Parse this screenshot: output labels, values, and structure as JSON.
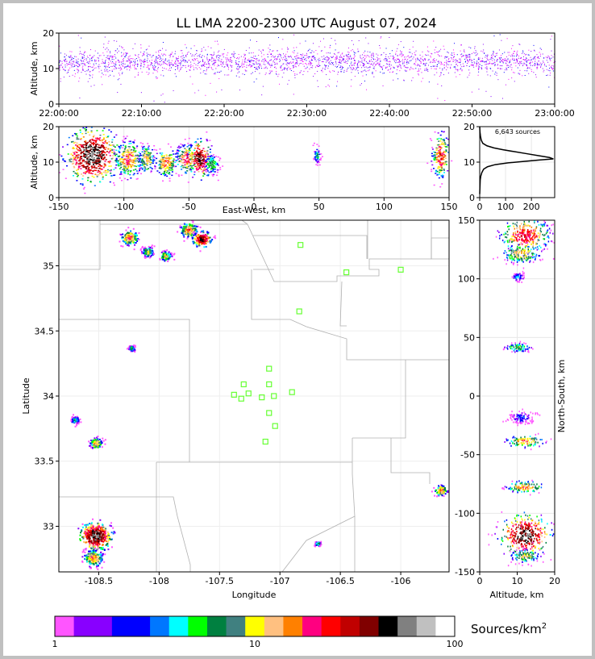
{
  "title": "LL LMA 2200-2300 UTC August 07, 2024",
  "colors": {
    "background": "#ffffff",
    "border": "#c0c0c0",
    "county_lines": "#b0b0b0",
    "stations": "#66ff33",
    "grid": "#e8e8e8",
    "histogram": "#000000"
  },
  "chart_data": [
    {
      "id": "time-height",
      "type": "scatter",
      "title": "",
      "xlabel": "",
      "ylabel": "Altitude, km",
      "xticks": [
        "22:00:00",
        "22:10:00",
        "22:20:00",
        "22:30:00",
        "22:40:00",
        "22:50:00",
        "23:00:00"
      ],
      "xlim_minutes": [
        0,
        60
      ],
      "yticks": [
        0,
        10,
        20
      ],
      "ylim": [
        0,
        20
      ],
      "band_center_km": 12,
      "band_spread_km": 2.5,
      "color_by": "time"
    },
    {
      "id": "east-west-height",
      "type": "heatmap",
      "xlabel": "East-West, km",
      "ylabel": "Altitude, km",
      "xticks": [
        -150,
        -100,
        -50,
        0,
        50,
        100,
        150
      ],
      "xlim": [
        -150,
        150
      ],
      "yticks": [
        0,
        10,
        20
      ],
      "ylim": [
        0,
        20
      ],
      "cells": [
        {
          "x": -125,
          "z": 12,
          "sx": 9,
          "sz": 3.5,
          "peak": 60
        },
        {
          "x": -97,
          "z": 11,
          "sx": 5,
          "sz": 2.5,
          "peak": 20
        },
        {
          "x": -83,
          "z": 11,
          "sx": 3,
          "sz": 2,
          "peak": 15
        },
        {
          "x": -68,
          "z": 10,
          "sx": 4,
          "sz": 2,
          "peak": 18
        },
        {
          "x": -52,
          "z": 11,
          "sx": 4,
          "sz": 2,
          "peak": 22
        },
        {
          "x": -42,
          "z": 11,
          "sx": 4,
          "sz": 2.5,
          "peak": 45
        },
        {
          "x": -33,
          "z": 9.5,
          "sx": 3,
          "sz": 1.5,
          "peak": 8
        },
        {
          "x": 48,
          "z": 12,
          "sx": 1.5,
          "sz": 1.2,
          "peak": 6
        },
        {
          "x": 143,
          "z": 12,
          "sx": 3,
          "sz": 3,
          "peak": 25
        }
      ]
    },
    {
      "id": "altitude-histogram",
      "type": "line",
      "annotation": "6,643 sources",
      "xticks": [
        0,
        100,
        200
      ],
      "xlim": [
        0,
        290
      ],
      "yticks": [
        0,
        10,
        20
      ],
      "ylim": [
        0,
        20
      ],
      "x": [
        0,
        1,
        2,
        4,
        8,
        15,
        30,
        60,
        110,
        170,
        230,
        285,
        270,
        230,
        180,
        130,
        90,
        55,
        28,
        12,
        6,
        3,
        1,
        0
      ],
      "y": [
        1,
        3,
        5,
        6,
        7,
        8,
        8.7,
        9.3,
        9.8,
        10.2,
        10.6,
        10.9,
        11.3,
        11.8,
        12.4,
        13.0,
        13.5,
        14.0,
        14.6,
        15.3,
        16.2,
        17.3,
        18.5,
        20
      ]
    },
    {
      "id": "plan-view",
      "type": "heatmap",
      "xlabel": "Longitude",
      "ylabel": "Latitude",
      "xticks": [
        -108.5,
        -108.0,
        -107.5,
        -107.0,
        -106.5,
        -106.0
      ],
      "xlim": [
        -108.83,
        -105.6
      ],
      "yticks": [
        33.0,
        33.5,
        34.0,
        34.5,
        35.0
      ],
      "ylim": [
        32.65,
        35.35
      ],
      "cells": [
        {
          "lon": -108.53,
          "lat": 32.93,
          "s": 0.06,
          "peak": 60
        },
        {
          "lon": -108.55,
          "lat": 32.76,
          "s": 0.04,
          "peak": 18
        },
        {
          "lon": -108.53,
          "lat": 33.64,
          "s": 0.025,
          "peak": 18
        },
        {
          "lon": -108.25,
          "lat": 35.22,
          "s": 0.035,
          "peak": 20
        },
        {
          "lon": -108.1,
          "lat": 35.11,
          "s": 0.025,
          "peak": 12
        },
        {
          "lon": -107.95,
          "lat": 35.08,
          "s": 0.025,
          "peak": 12
        },
        {
          "lon": -107.76,
          "lat": 35.28,
          "s": 0.035,
          "peak": 20
        },
        {
          "lon": -107.65,
          "lat": 35.21,
          "s": 0.035,
          "peak": 45
        },
        {
          "lon": -108.23,
          "lat": 34.37,
          "s": 0.015,
          "peak": 8
        },
        {
          "lon": -108.7,
          "lat": 33.82,
          "s": 0.02,
          "peak": 6
        },
        {
          "lon": -105.67,
          "lat": 33.28,
          "s": 0.025,
          "peak": 20
        },
        {
          "lon": -106.69,
          "lat": 32.87,
          "s": 0.012,
          "peak": 8
        }
      ],
      "stations": [
        {
          "lon": -106.83,
          "lat": 35.16
        },
        {
          "lon": -106.45,
          "lat": 34.95
        },
        {
          "lon": -106.0,
          "lat": 34.97
        },
        {
          "lon": -106.84,
          "lat": 34.65
        },
        {
          "lon": -107.09,
          "lat": 34.21
        },
        {
          "lon": -107.09,
          "lat": 34.09
        },
        {
          "lon": -107.3,
          "lat": 34.09
        },
        {
          "lon": -107.38,
          "lat": 34.01
        },
        {
          "lon": -107.32,
          "lat": 33.98
        },
        {
          "lon": -107.26,
          "lat": 34.02
        },
        {
          "lon": -107.15,
          "lat": 33.99
        },
        {
          "lon": -107.05,
          "lat": 34.0
        },
        {
          "lon": -106.9,
          "lat": 34.03
        },
        {
          "lon": -107.09,
          "lat": 33.87
        },
        {
          "lon": -107.04,
          "lat": 33.77
        },
        {
          "lon": -107.12,
          "lat": 33.65
        }
      ]
    },
    {
      "id": "north-south-height",
      "type": "heatmap",
      "xlabel": "Altitude, km",
      "ylabel": "North-South, km",
      "xticks": [
        0,
        10,
        20
      ],
      "xlim": [
        0,
        20
      ],
      "yticks": [
        150,
        100,
        50,
        0,
        -50,
        -100,
        -150
      ],
      "ylim": [
        -150,
        150
      ],
      "cells": [
        {
          "y": 138,
          "z": 12,
          "sy": 7,
          "sz": 3,
          "peak": 30
        },
        {
          "y": 122,
          "z": 11,
          "sy": 4,
          "sz": 2.5,
          "peak": 15
        },
        {
          "y": 102,
          "z": 10,
          "sy": 2,
          "sz": 1,
          "peak": 4
        },
        {
          "y": 42,
          "z": 10,
          "sy": 2,
          "sz": 2,
          "peak": 8
        },
        {
          "y": -18,
          "z": 11,
          "sy": 3,
          "sz": 2,
          "peak": 3
        },
        {
          "y": -38,
          "z": 12,
          "sy": 2.5,
          "sz": 2.5,
          "peak": 18
        },
        {
          "y": -77,
          "z": 12,
          "sy": 2.5,
          "sz": 2.5,
          "peak": 18
        },
        {
          "y": -118,
          "z": 12,
          "sy": 8,
          "sz": 3,
          "peak": 55
        },
        {
          "y": -136,
          "z": 12,
          "sy": 3,
          "sz": 2,
          "peak": 12
        }
      ]
    }
  ],
  "colorbar": {
    "label": "Sources/km",
    "label_superscript": "2",
    "ticks": [
      "1",
      "10",
      "100"
    ],
    "colors": [
      "#ff55ff",
      "#8800ff",
      "#8800ff",
      "#0000ff",
      "#0000ff",
      "#0077ff",
      "#00ffff",
      "#00ff00",
      "#008040",
      "#408080",
      "#ffff00",
      "#ffc080",
      "#ff8000",
      "#ff0080",
      "#ff0000",
      "#c00000",
      "#800000",
      "#000000",
      "#808080",
      "#c0c0c0",
      "#ffffff"
    ]
  }
}
